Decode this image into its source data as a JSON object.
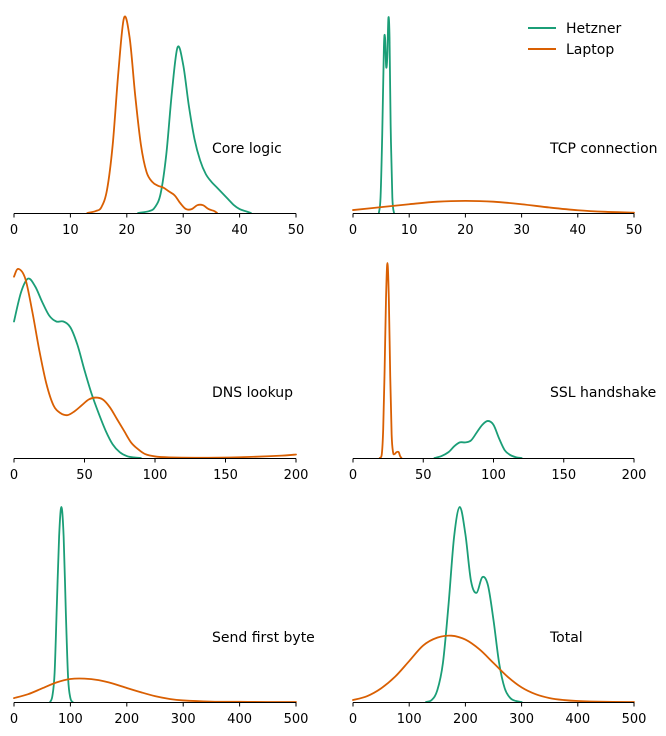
{
  "legend": [
    {
      "label": "Hetzner",
      "color": "#1b9e77"
    },
    {
      "label": "Laptop",
      "color": "#d95f02"
    }
  ],
  "chart_data": [
    {
      "type": "line",
      "title": "Core logic",
      "xlim": [
        0,
        50
      ],
      "xticks": [
        "0",
        "10",
        "20",
        "30",
        "40",
        "50"
      ],
      "y_axis_shown": false,
      "series": [
        {
          "name": "Hetzner",
          "color": "#1b9e77",
          "x": [
            22,
            24,
            25,
            26,
            27,
            28,
            29,
            30,
            31,
            32,
            33,
            34,
            35,
            36,
            37,
            38,
            39,
            40,
            41,
            42
          ],
          "y": [
            0.0,
            0.01,
            0.03,
            0.1,
            0.3,
            0.62,
            0.85,
            0.76,
            0.55,
            0.38,
            0.27,
            0.2,
            0.16,
            0.13,
            0.1,
            0.07,
            0.04,
            0.02,
            0.01,
            0.0
          ]
        },
        {
          "name": "Laptop",
          "color": "#d95f02",
          "x": [
            13,
            14.5,
            15.5,
            16.5,
            17.5,
            18.5,
            19.5,
            20.5,
            21.5,
            22.5,
            23.5,
            24.5,
            25.5,
            26.5,
            27.5,
            28.5,
            29.5,
            30.5,
            31.5,
            32.5,
            33.5,
            34.5,
            35.5,
            36
          ],
          "y": [
            0.0,
            0.01,
            0.03,
            0.12,
            0.35,
            0.72,
            1.0,
            0.9,
            0.6,
            0.35,
            0.21,
            0.16,
            0.14,
            0.13,
            0.11,
            0.09,
            0.05,
            0.02,
            0.02,
            0.04,
            0.04,
            0.02,
            0.01,
            0.0
          ]
        }
      ]
    },
    {
      "type": "line",
      "title": "TCP connection",
      "xlim": [
        0,
        50
      ],
      "xticks": [
        "0",
        "10",
        "20",
        "30",
        "40",
        "50"
      ],
      "y_axis_shown": false,
      "series": [
        {
          "name": "Hetzner",
          "color": "#1b9e77",
          "x": [
            4.6,
            4.9,
            5.2,
            5.5,
            5.7,
            5.9,
            6.1,
            6.3,
            6.5,
            6.7,
            7.0,
            7.3
          ],
          "y": [
            0.0,
            0.08,
            0.4,
            0.85,
            0.9,
            0.75,
            0.8,
            1.0,
            0.9,
            0.45,
            0.08,
            0.0
          ]
        },
        {
          "name": "Laptop",
          "color": "#d95f02",
          "x": [
            0,
            5,
            10,
            15,
            20,
            25,
            30,
            35,
            40,
            45,
            50
          ],
          "y": [
            0.015,
            0.03,
            0.045,
            0.058,
            0.062,
            0.058,
            0.045,
            0.028,
            0.014,
            0.006,
            0.002
          ]
        }
      ]
    },
    {
      "type": "line",
      "title": "DNS lookup",
      "xlim": [
        0,
        200
      ],
      "xticks": [
        "0",
        "50",
        "100",
        "150",
        "200"
      ],
      "y_axis_shown": false,
      "series": [
        {
          "name": "Hetzner",
          "color": "#1b9e77",
          "x": [
            0,
            5,
            10,
            15,
            20,
            25,
            30,
            35,
            40,
            45,
            50,
            55,
            60,
            65,
            70,
            75,
            80,
            85,
            90
          ],
          "y": [
            0.7,
            0.85,
            0.92,
            0.88,
            0.8,
            0.73,
            0.7,
            0.7,
            0.67,
            0.58,
            0.45,
            0.33,
            0.23,
            0.14,
            0.07,
            0.03,
            0.01,
            0.003,
            0.0
          ]
        },
        {
          "name": "Laptop",
          "color": "#d95f02",
          "x": [
            0,
            3,
            8,
            13,
            18,
            23,
            28,
            33,
            38,
            43,
            48,
            53,
            58,
            63,
            68,
            73,
            78,
            83,
            88,
            93,
            100,
            110,
            130,
            160,
            190,
            200
          ],
          "y": [
            0.93,
            0.97,
            0.92,
            0.75,
            0.55,
            0.38,
            0.27,
            0.23,
            0.22,
            0.24,
            0.27,
            0.3,
            0.31,
            0.3,
            0.26,
            0.2,
            0.14,
            0.08,
            0.045,
            0.02,
            0.008,
            0.003,
            0.001,
            0.004,
            0.012,
            0.018
          ]
        }
      ]
    },
    {
      "type": "line",
      "title": "SSL handshake",
      "xlim": [
        0,
        200
      ],
      "xticks": [
        "0",
        "50",
        "100",
        "150",
        "200"
      ],
      "y_axis_shown": false,
      "series": [
        {
          "name": "Hetzner",
          "color": "#1b9e77",
          "x": [
            58,
            63,
            68,
            72,
            76,
            80,
            84,
            88,
            92,
            96,
            100,
            104,
            108,
            112,
            116,
            120
          ],
          "y": [
            0.0,
            0.01,
            0.03,
            0.06,
            0.08,
            0.08,
            0.09,
            0.13,
            0.17,
            0.19,
            0.17,
            0.1,
            0.04,
            0.015,
            0.004,
            0.0
          ]
        },
        {
          "name": "Laptop",
          "color": "#d95f02",
          "x": [
            19,
            20.5,
            21.5,
            22.5,
            23.5,
            24.5,
            25.5,
            26.5,
            27.5,
            28.5,
            29.5,
            31,
            32.5,
            33.5,
            34.5
          ],
          "y": [
            0.0,
            0.02,
            0.15,
            0.45,
            0.82,
            1.0,
            0.82,
            0.42,
            0.12,
            0.03,
            0.02,
            0.03,
            0.03,
            0.01,
            0.0
          ]
        }
      ]
    },
    {
      "type": "line",
      "title": "Send first byte",
      "xlim": [
        0,
        500
      ],
      "xticks": [
        "0",
        "100",
        "200",
        "300",
        "400",
        "500"
      ],
      "y_axis_shown": false,
      "series": [
        {
          "name": "Hetzner",
          "color": "#1b9e77",
          "x": [
            64,
            68,
            72,
            76,
            80,
            84,
            88,
            92,
            96,
            100,
            104
          ],
          "y": [
            0.0,
            0.03,
            0.15,
            0.5,
            0.85,
            1.0,
            0.85,
            0.45,
            0.12,
            0.02,
            0.0
          ]
        },
        {
          "name": "Laptop",
          "color": "#d95f02",
          "x": [
            0,
            25,
            50,
            75,
            100,
            125,
            150,
            175,
            200,
            225,
            250,
            275,
            300,
            350,
            400,
            450,
            500
          ],
          "y": [
            0.02,
            0.04,
            0.07,
            0.1,
            0.118,
            0.12,
            0.112,
            0.095,
            0.072,
            0.05,
            0.03,
            0.016,
            0.008,
            0.002,
            0.001,
            0.0,
            0.0
          ]
        }
      ]
    },
    {
      "type": "line",
      "title": "Total",
      "xlim": [
        0,
        500
      ],
      "xticks": [
        "0",
        "100",
        "200",
        "300",
        "400",
        "500"
      ],
      "y_axis_shown": false,
      "series": [
        {
          "name": "Hetzner",
          "color": "#1b9e77",
          "x": [
            130,
            140,
            150,
            160,
            170,
            180,
            190,
            200,
            210,
            220,
            230,
            240,
            250,
            260,
            270,
            280,
            290,
            300
          ],
          "y": [
            0.0,
            0.01,
            0.06,
            0.2,
            0.5,
            0.85,
            1.0,
            0.86,
            0.62,
            0.56,
            0.64,
            0.6,
            0.42,
            0.2,
            0.07,
            0.02,
            0.005,
            0.0
          ]
        },
        {
          "name": "Laptop",
          "color": "#d95f02",
          "x": [
            0,
            25,
            50,
            75,
            100,
            125,
            150,
            175,
            200,
            225,
            250,
            275,
            300,
            325,
            350,
            375,
            400,
            450,
            500
          ],
          "y": [
            0.01,
            0.03,
            0.07,
            0.13,
            0.21,
            0.29,
            0.33,
            0.34,
            0.32,
            0.27,
            0.2,
            0.13,
            0.075,
            0.04,
            0.02,
            0.01,
            0.005,
            0.001,
            0.0
          ]
        }
      ]
    }
  ]
}
